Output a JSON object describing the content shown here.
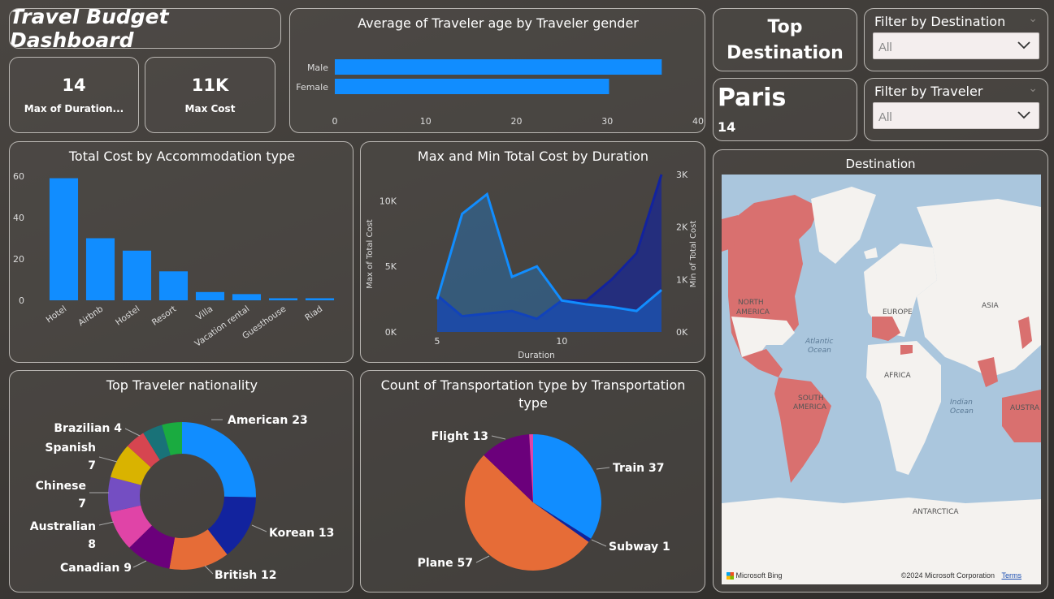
{
  "dashboard_title": "Travel Budget Dashboard",
  "kpis": [
    {
      "value": "14",
      "label": "Max of Duration..."
    },
    {
      "value": "11K",
      "label": "Max Cost"
    }
  ],
  "top_destination": {
    "title_line1": "Top",
    "title_line2": "Destination",
    "city": "Paris",
    "value": "14"
  },
  "slicers": {
    "destination": {
      "title": "Filter by Destination",
      "value": "All"
    },
    "traveler": {
      "title": "Filter by Traveler",
      "value": "All"
    }
  },
  "colors": {
    "primary": "#118dff",
    "dark_blue": "#12239e",
    "orange": "#e66c37",
    "purple": "#6b007b",
    "pink": "#e044a7",
    "violet": "#744ec2",
    "yellow": "#d9b300",
    "red": "#d64550",
    "teal": "#197278",
    "green": "#1aab40",
    "map_land": "#d9706f",
    "map_water": "#aac6dd"
  },
  "map": {
    "title": "Destination",
    "labels": [
      "NORTH",
      "AMERICA",
      "EUROPE",
      "ASIA",
      "Atlantic",
      "Ocean",
      "AFRICA",
      "SOUTH",
      "AMERICA",
      "Indian",
      "Ocean",
      "AUSTRA",
      "ANTARCTICA"
    ],
    "brand": "Microsoft Bing",
    "copyright": "©2024 Microsoft Corporation",
    "terms": "Terms"
  },
  "chart_data": [
    {
      "id": "age_by_gender",
      "type": "bar",
      "orientation": "horizontal",
      "title": "Average of Traveler age by Traveler gender",
      "categories": [
        "Male",
        "Female"
      ],
      "values": [
        36,
        30.2
      ],
      "xlim": [
        0,
        40
      ],
      "xticks": [
        "0",
        "10",
        "20",
        "30",
        "40"
      ]
    },
    {
      "id": "cost_by_accommodation",
      "type": "bar",
      "title": "Total Cost by Accommodation type",
      "categories": [
        "Hotel",
        "Airbnb",
        "Hostel",
        "Resort",
        "Villa",
        "Vacation rental",
        "Guesthouse",
        "Riad"
      ],
      "values": [
        59,
        30,
        24,
        14,
        4,
        3,
        1,
        1
      ],
      "ylim": [
        0,
        60
      ],
      "yticks": [
        "0",
        "20",
        "40",
        "60"
      ]
    },
    {
      "id": "max_min_cost_by_duration",
      "type": "area",
      "title": "Max and Min Total Cost by Duration",
      "xlabel": "Duration",
      "ylabel_left": "Max of Total Cost",
      "ylabel_right": "Min of Total Cost",
      "x": [
        5,
        6,
        7,
        8,
        9,
        10,
        11,
        12,
        13,
        14
      ],
      "xticks": [
        "5",
        "10"
      ],
      "yticks_left": [
        "0K",
        "5K",
        "10K"
      ],
      "yticks_right": [
        "0K",
        "1K",
        "2K",
        "3K"
      ],
      "series": [
        {
          "name": "Max of Total Cost",
          "axis": "left",
          "values": [
            2500,
            9000,
            10500,
            4200,
            5000,
            2400,
            2100,
            1900,
            1600,
            3200
          ],
          "ylim": [
            0,
            12000
          ]
        },
        {
          "name": "Min of Total Cost",
          "axis": "right",
          "values": [
            700,
            300,
            350,
            400,
            250,
            600,
            600,
            1000,
            1500,
            3000
          ],
          "ylim": [
            0,
            3000
          ]
        }
      ]
    },
    {
      "id": "nationality",
      "type": "pie",
      "variant": "donut",
      "title": "Top Traveler nationality",
      "slices": [
        {
          "label": "American 23",
          "value": 23
        },
        {
          "label": "Korean 13",
          "value": 13
        },
        {
          "label": "British 12",
          "value": 12
        },
        {
          "label": "Canadian 9",
          "value": 9
        },
        {
          "label": "Australian 8",
          "value": 8
        },
        {
          "label": "Chinese 7",
          "value": 7
        },
        {
          "label": "Spanish 7",
          "value": 7
        },
        {
          "label": "Brazilian 4",
          "value": 4
        },
        {
          "label": "",
          "value": 4
        },
        {
          "label": "",
          "value": 4
        }
      ]
    },
    {
      "id": "transportation",
      "type": "pie",
      "title": "Count of Transportation type by Transportation type",
      "slices": [
        {
          "label": "Train 37",
          "value": 37
        },
        {
          "label": "Subway 1",
          "value": 1
        },
        {
          "label": "Plane 57",
          "value": 57
        },
        {
          "label": "Flight 13",
          "value": 13
        },
        {
          "label": "",
          "value": 1
        }
      ]
    }
  ]
}
